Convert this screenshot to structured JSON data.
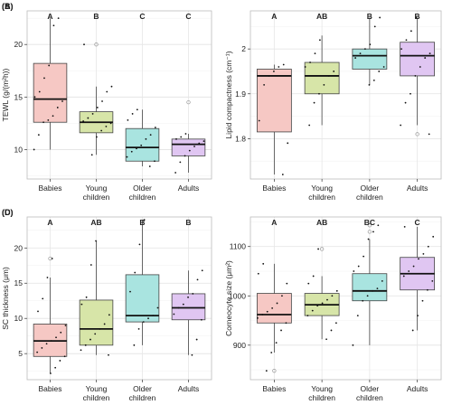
{
  "chart_data": [
    {
      "type": "boxplot",
      "panel": "(A)",
      "ylabel": "TEWL (g/(m²h))",
      "categories": [
        "Babies",
        "Young children",
        "Older children",
        "Adults"
      ],
      "yticks": [
        10,
        15,
        20
      ],
      "ylim": [
        7.2,
        23.2
      ],
      "letters": [
        "A",
        "B",
        "C",
        "C"
      ],
      "colors": [
        "#f6c8c4",
        "#d7e5a8",
        "#a9e4e0",
        "#e0c6f2"
      ],
      "boxes": [
        {
          "whisker_low": 10.0,
          "q1": 12.6,
          "median": 14.8,
          "q3": 18.2,
          "whisker_high": 22.5,
          "outliers": []
        },
        {
          "whisker_low": 9.5,
          "q1": 11.6,
          "median": 12.6,
          "q3": 13.6,
          "whisker_high": 16.0,
          "outliers": [
            20.0
          ]
        },
        {
          "whisker_low": 8.4,
          "q1": 8.9,
          "median": 10.2,
          "q3": 12.0,
          "whisker_high": 13.8,
          "outliers": []
        },
        {
          "whisker_low": 7.8,
          "q1": 9.4,
          "median": 10.5,
          "q3": 11.0,
          "whisker_high": 11.5,
          "outliers": [
            14.5
          ]
        }
      ],
      "points": [
        [
          10.0,
          11.4,
          12.6,
          12.8,
          13.2,
          14.0,
          14.6,
          15.0,
          15.5,
          16.8,
          18.0,
          21.8,
          22.5
        ],
        [
          9.5,
          11.2,
          11.8,
          12.2,
          12.5,
          12.7,
          13.0,
          13.4,
          14.0,
          14.6,
          15.5,
          16.0,
          20.0
        ],
        [
          8.4,
          8.9,
          9.3,
          9.8,
          10.1,
          10.4,
          11.0,
          11.4,
          12.1,
          12.8,
          13.4,
          13.8
        ],
        [
          7.8,
          8.8,
          9.4,
          9.9,
          10.3,
          10.6,
          10.8,
          11.0,
          11.2,
          11.5
        ]
      ]
    },
    {
      "type": "boxplot",
      "panel": "(B)",
      "ylabel": "Lipid compactness (cm⁻¹)",
      "categories": [
        "Babies",
        "Young children",
        "Older children",
        "Adults"
      ],
      "yticks": [
        1.8,
        1.9,
        2.0
      ],
      "ylim": [
        1.71,
        2.085
      ],
      "letters": [
        "A",
        "AB",
        "B",
        "B"
      ],
      "colors": [
        "#f6c8c4",
        "#d7e5a8",
        "#a9e4e0",
        "#e0c6f2"
      ],
      "boxes": [
        {
          "whisker_low": 1.72,
          "q1": 1.815,
          "median": 1.94,
          "q3": 1.955,
          "whisker_high": 1.965,
          "outliers": []
        },
        {
          "whisker_low": 1.83,
          "q1": 1.9,
          "median": 1.94,
          "q3": 1.97,
          "whisker_high": 2.03,
          "outliers": []
        },
        {
          "whisker_low": 1.92,
          "q1": 1.955,
          "median": 1.985,
          "q3": 2.0,
          "whisker_high": 2.07,
          "outliers": []
        },
        {
          "whisker_low": 1.83,
          "q1": 1.94,
          "median": 1.985,
          "q3": 2.015,
          "whisker_high": 2.07,
          "outliers": [
            1.81
          ]
        }
      ],
      "points": [
        [
          1.72,
          1.79,
          1.84,
          1.92,
          1.94,
          1.95,
          1.96,
          1.965
        ],
        [
          1.83,
          1.88,
          1.9,
          1.92,
          1.94,
          1.95,
          1.96,
          1.97,
          1.99,
          2.02
        ],
        [
          1.92,
          1.93,
          1.95,
          1.96,
          1.98,
          1.99,
          2.0,
          2.01,
          2.05,
          2.07
        ],
        [
          1.81,
          1.83,
          1.88,
          1.9,
          1.94,
          1.96,
          1.98,
          1.99,
          2.0,
          2.02,
          2.04,
          2.07
        ]
      ]
    },
    {
      "type": "boxplot",
      "panel": "(C)",
      "ylabel": "SC thickness (μm)",
      "categories": [
        "Babies",
        "Young children",
        "Older children",
        "Adults"
      ],
      "yticks": [
        5,
        10,
        15,
        20
      ],
      "ylim": [
        1.3,
        24.4
      ],
      "letters": [
        "A",
        "AB",
        "B",
        "B"
      ],
      "colors": [
        "#f6c8c4",
        "#d7e5a8",
        "#a9e4e0",
        "#e0c6f2"
      ],
      "boxes": [
        {
          "whisker_low": 2.2,
          "q1": 4.6,
          "median": 6.8,
          "q3": 9.2,
          "whisker_high": 15.8,
          "outliers": [
            18.5
          ]
        },
        {
          "whisker_low": 4.8,
          "q1": 6.2,
          "median": 8.5,
          "q3": 12.6,
          "whisker_high": 21.0,
          "outliers": []
        },
        {
          "whisker_low": 6.2,
          "q1": 9.5,
          "median": 10.4,
          "q3": 16.2,
          "whisker_high": 24.0,
          "outliers": []
        },
        {
          "whisker_low": 4.8,
          "q1": 9.8,
          "median": 11.5,
          "q3": 13.5,
          "whisker_high": 16.8,
          "outliers": []
        }
      ],
      "points": [
        [
          2.2,
          3.0,
          4.0,
          4.6,
          5.2,
          5.8,
          6.4,
          6.8,
          7.3,
          8.0,
          9.0,
          11.0,
          12.8,
          15.8,
          18.5
        ],
        [
          4.8,
          5.5,
          6.2,
          7.0,
          7.8,
          8.5,
          9.2,
          10.5,
          12.0,
          13.0,
          17.6,
          21.0
        ],
        [
          6.2,
          8.5,
          9.5,
          10.0,
          10.4,
          11.5,
          13.8,
          16.5,
          20.5,
          24.0
        ],
        [
          4.8,
          7.0,
          9.8,
          10.6,
          11.5,
          12.0,
          13.0,
          13.5,
          15.5,
          16.8
        ]
      ]
    },
    {
      "type": "boxplot",
      "panel": "(D)",
      "ylabel": "Corneocyte size (μm²)",
      "categories": [
        "Babies",
        "Young children",
        "Older children",
        "Adults"
      ],
      "yticks": [
        900,
        1000,
        1100
      ],
      "ylim": [
        830,
        1160
      ],
      "letters": [
        "A",
        "AB",
        "BC",
        "C"
      ],
      "colors": [
        "#f6c8c4",
        "#d7e5a8",
        "#a9e4e0",
        "#e0c6f2"
      ],
      "boxes": [
        {
          "whisker_low": 885,
          "q1": 945,
          "median": 962,
          "q3": 1005,
          "whisker_high": 1065,
          "outliers": [
            848
          ]
        },
        {
          "whisker_low": 912,
          "q1": 960,
          "median": 982,
          "q3": 1005,
          "whisker_high": 1040,
          "outliers": [
            1095
          ]
        },
        {
          "whisker_low": 900,
          "q1": 990,
          "median": 1010,
          "q3": 1045,
          "whisker_high": 1115,
          "outliers": [
            1130,
            1143
          ]
        },
        {
          "whisker_low": 930,
          "q1": 1012,
          "median": 1045,
          "q3": 1078,
          "whisker_high": 1140,
          "outliers": []
        }
      ],
      "points": [
        [
          848,
          885,
          905,
          930,
          945,
          955,
          962,
          968,
          975,
          985,
          1000,
          1025,
          1045,
          1065
        ],
        [
          912,
          930,
          945,
          960,
          970,
          980,
          985,
          992,
          1000,
          1010,
          1025,
          1040,
          1095
        ],
        [
          900,
          960,
          990,
          1000,
          1010,
          1015,
          1030,
          1050,
          1060,
          1080,
          1115,
          1130,
          1143
        ],
        [
          930,
          960,
          990,
          1012,
          1030,
          1040,
          1050,
          1060,
          1075,
          1085,
          1100,
          1120,
          1140
        ]
      ]
    }
  ]
}
